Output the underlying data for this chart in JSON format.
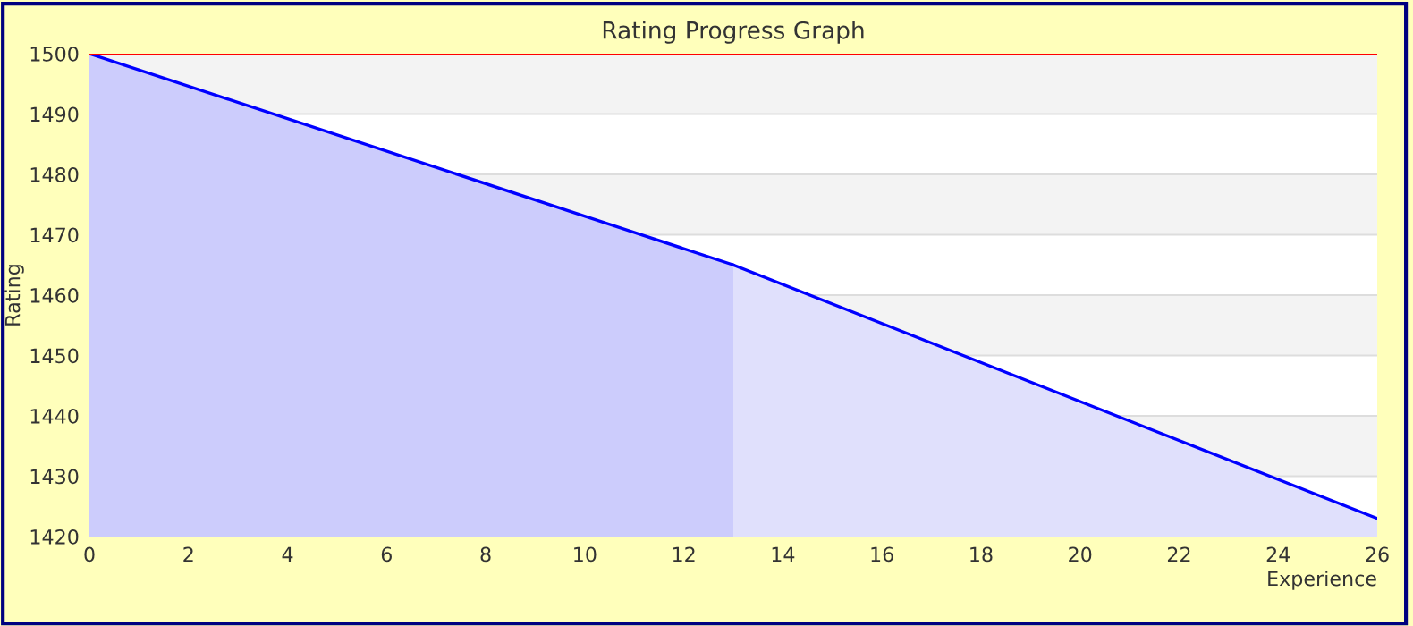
{
  "chart_data": {
    "type": "area",
    "title": "Rating Progress Graph",
    "xlabel": "Experience",
    "ylabel": "Rating",
    "series": [
      {
        "color": "#ccccfc",
        "x": [
          0,
          13
        ],
        "values": [
          1500,
          1465
        ]
      },
      {
        "color": "#e0e0fc",
        "x": [
          13,
          26
        ],
        "values": [
          1465,
          1423
        ]
      }
    ],
    "xlim": [
      0,
      26
    ],
    "xticks": [
      0,
      2,
      4,
      6,
      8,
      10,
      12,
      14,
      16,
      18,
      20,
      22,
      24,
      26
    ],
    "ylim": [
      1420,
      1500
    ],
    "yticks": [
      1420,
      1430,
      1440,
      1450,
      1460,
      1470,
      1480,
      1490,
      1500
    ],
    "bands": [
      {
        "axis": "y",
        "from": 1490,
        "to": 1500,
        "color": "#f3f3f3"
      },
      {
        "axis": "y",
        "from": 1470,
        "to": 1480,
        "color": "#f3f3f3"
      },
      {
        "axis": "y",
        "from": 1450,
        "to": 1460,
        "color": "#f3f3f3"
      },
      {
        "axis": "y",
        "from": 1430,
        "to": 1440,
        "color": "#f3f3f3"
      }
    ],
    "ref_lines": [
      {
        "axis": "y",
        "value": 1500,
        "color": "#ff0000"
      }
    ],
    "grid": "y",
    "legend": false
  }
}
